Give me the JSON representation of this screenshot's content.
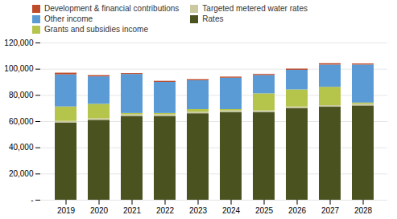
{
  "chart_data": {
    "type": "bar",
    "stacked": true,
    "categories": [
      "2019",
      "2020",
      "2021",
      "2022",
      "2023",
      "2024",
      "2025",
      "2026",
      "2027",
      "2028"
    ],
    "series": [
      {
        "name": "Rates",
        "color": "#4a5220",
        "values": [
          59000,
          61000,
          64000,
          64000,
          66000,
          67000,
          67000,
          70000,
          71000,
          72000
        ]
      },
      {
        "name": "Targeted metered water rates",
        "color": "#cbc9a0",
        "values": [
          1200,
          1200,
          1200,
          1200,
          1200,
          1200,
          1200,
          1200,
          1200,
          1200
        ]
      },
      {
        "name": "Grants and subsidies income",
        "color": "#b5c44a",
        "values": [
          11000,
          11000,
          1000,
          1000,
          2000,
          1000,
          13000,
          13000,
          14000,
          1000
        ]
      },
      {
        "name": "Other income",
        "color": "#5b9bd5",
        "values": [
          24500,
          21000,
          29800,
          23800,
          22000,
          24000,
          14000,
          15000,
          17000,
          29000
        ]
      },
      {
        "name": "Development & financial contributions",
        "color": "#be4b2a",
        "values": [
          1300,
          900,
          700,
          800,
          800,
          800,
          800,
          900,
          1000,
          800
        ]
      }
    ],
    "ylim": [
      0,
      120000
    ],
    "yticks": [
      {
        "value": 0,
        "label": "-"
      },
      {
        "value": 20000,
        "label": "20,000"
      },
      {
        "value": 40000,
        "label": "40,000"
      },
      {
        "value": 60000,
        "label": "60,000"
      },
      {
        "value": 80000,
        "label": "80,000"
      },
      {
        "value": 100000,
        "label": "100,000"
      },
      {
        "value": 120000,
        "label": "120,000"
      }
    ],
    "grid": true,
    "legend": "upper left"
  }
}
